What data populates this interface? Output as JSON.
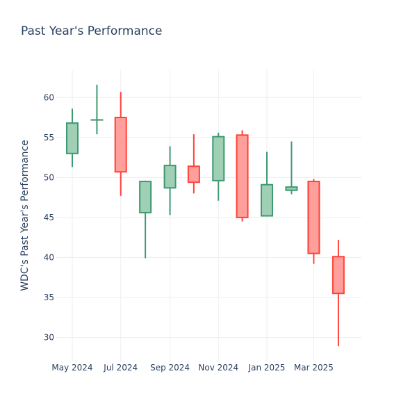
{
  "chart_data": {
    "type": "candlestick",
    "title": "Past Year's Performance",
    "xlabel": "",
    "ylabel": "WDC's Past Year's Performance",
    "ylim": [
      27,
      63.5
    ],
    "y_ticks": [
      30,
      35,
      40,
      45,
      50,
      55,
      60
    ],
    "x_ticks": [
      {
        "date": "2024-05-01",
        "label": "May 2024"
      },
      {
        "date": "2024-07-01",
        "label": "Jul 2024"
      },
      {
        "date": "2024-09-01",
        "label": "Sep 2024"
      },
      {
        "date": "2024-11-01",
        "label": "Nov 2024"
      },
      {
        "date": "2025-01-01",
        "label": "Jan 2025"
      },
      {
        "date": "2025-03-01",
        "label": "Mar 2025"
      }
    ],
    "xlim": [
      "2024-04-10",
      "2025-04-30"
    ],
    "grid": true,
    "colors": {
      "increasing_line": "#3d9970",
      "increasing_fill": "#9fd0b6",
      "decreasing_line": "#ff4136",
      "decreasing_fill": "#ff9f9b"
    },
    "candles": [
      {
        "date": "2024-05-01",
        "open": 53.0,
        "high": 58.6,
        "low": 51.3,
        "close": 56.8
      },
      {
        "date": "2024-06-01",
        "open": 57.2,
        "high": 61.6,
        "low": 55.4,
        "close": 57.2
      },
      {
        "date": "2024-07-01",
        "open": 57.5,
        "high": 60.7,
        "low": 47.7,
        "close": 50.7
      },
      {
        "date": "2024-08-01",
        "open": 45.6,
        "high": 49.6,
        "low": 39.9,
        "close": 49.5
      },
      {
        "date": "2024-09-01",
        "open": 48.7,
        "high": 53.9,
        "low": 45.3,
        "close": 51.5
      },
      {
        "date": "2024-10-01",
        "open": 51.4,
        "high": 55.4,
        "low": 48.0,
        "close": 49.4
      },
      {
        "date": "2024-11-01",
        "open": 49.6,
        "high": 55.6,
        "low": 47.1,
        "close": 55.1
      },
      {
        "date": "2024-12-01",
        "open": 55.3,
        "high": 55.9,
        "low": 44.5,
        "close": 45.0
      },
      {
        "date": "2025-01-01",
        "open": 45.2,
        "high": 53.2,
        "low": 45.2,
        "close": 49.1
      },
      {
        "date": "2025-02-01",
        "open": 48.4,
        "high": 54.5,
        "low": 47.9,
        "close": 48.8
      },
      {
        "date": "2025-03-01",
        "open": 49.5,
        "high": 49.8,
        "low": 39.2,
        "close": 40.5
      },
      {
        "date": "2025-04-01",
        "open": 40.1,
        "high": 42.2,
        "low": 28.9,
        "close": 35.5
      }
    ]
  }
}
